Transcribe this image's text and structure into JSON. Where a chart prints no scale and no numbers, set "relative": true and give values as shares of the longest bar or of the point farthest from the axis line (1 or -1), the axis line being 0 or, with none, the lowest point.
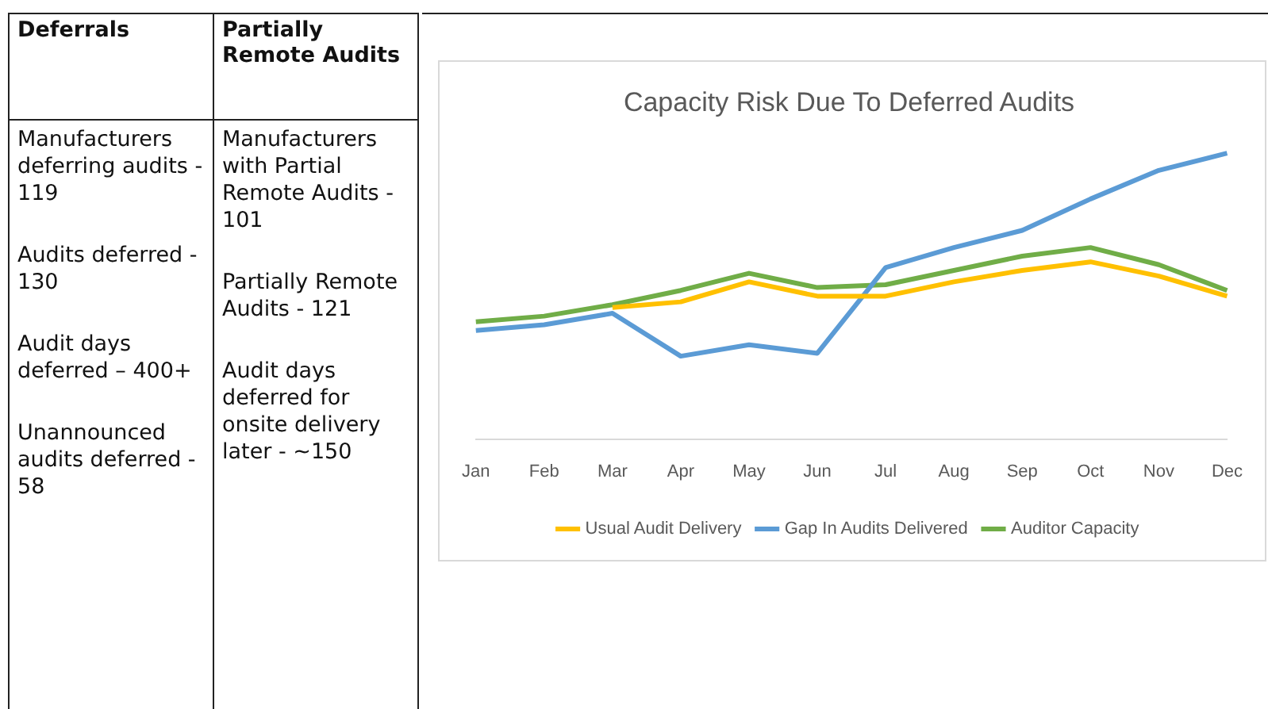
{
  "chart_data": [
    {
      "type": "other",
      "title": "Deferrals",
      "annotations": [
        "Manufacturers deferring audits - 119",
        "Audits deferred - 130",
        "Audit days deferred – 400+",
        "Unannounced audits deferred - 58"
      ]
    },
    {
      "type": "other",
      "title": "Partially Remote Audits",
      "annotations": [
        "Manufacturers with Partial Remote Audits - 101",
        "Partially Remote Audits - 121",
        "Audit days deferred for onsite delivery later - ~150"
      ]
    },
    {
      "type": "line",
      "title": "Capacity Risk Due To Deferred Audits",
      "relative": true,
      "legend": "bottom",
      "grid": false,
      "categories": [
        "Jan",
        "Feb",
        "Mar",
        "Apr",
        "May",
        "Jun",
        "Jul",
        "Aug",
        "Sep",
        "Oct",
        "Nov",
        "Dec"
      ],
      "series": [
        {
          "name": "Usual Audit Delivery",
          "color": "#ffc000",
          "values": [
            null,
            null,
            0.46,
            0.48,
            0.55,
            0.5,
            0.5,
            0.55,
            0.59,
            0.62,
            0.57,
            0.5
          ]
        },
        {
          "name": "Gap In Audits Delivered",
          "color": "#5b9bd5",
          "values": [
            0.38,
            0.4,
            0.44,
            0.29,
            0.33,
            0.3,
            0.6,
            0.67,
            0.73,
            0.84,
            0.94,
            1
          ]
        },
        {
          "name": "Auditor Capacity",
          "color": "#70ad47",
          "values": [
            0.41,
            0.43,
            0.47,
            0.52,
            0.58,
            0.53,
            0.54,
            0.59,
            0.64,
            0.67,
            0.61,
            0.52
          ]
        }
      ]
    }
  ]
}
